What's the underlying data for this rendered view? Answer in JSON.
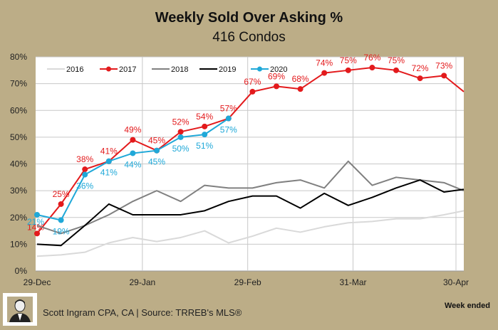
{
  "chart_data": {
    "type": "line",
    "title": "Weekly Sold Over Asking %",
    "subtitle": "416 Condos",
    "xlabel": "Week ended",
    "ylabel": "",
    "ylim": [
      0,
      80
    ],
    "y_ticks": [
      "0%",
      "10%",
      "20%",
      "30%",
      "40%",
      "50%",
      "60%",
      "70%",
      "80%"
    ],
    "x_tick_labels": [
      "29-Dec",
      "29-Jan",
      "29-Feb",
      "31-Mar",
      "30-Apr"
    ],
    "x_tick_weeks": [
      0,
      4.4,
      8.8,
      13.2,
      17.5
    ],
    "grid": true,
    "legend_position": "top-left",
    "weeks": 19,
    "series": [
      {
        "name": "2016",
        "color": "#d9d9d9",
        "markers": false,
        "labels": false,
        "values": [
          5.5,
          6,
          7,
          10.5,
          12.5,
          11,
          12.5,
          15,
          10.5,
          13,
          16,
          14.5,
          16.5,
          18,
          18.5,
          19.5,
          19.5,
          21,
          22.5
        ]
      },
      {
        "name": "2017",
        "color": "#e31a1c",
        "markers": true,
        "labels": true,
        "label_pos": "above",
        "values": [
          14,
          25,
          38,
          41,
          49,
          45,
          52,
          54,
          57,
          67,
          69,
          68,
          74,
          75,
          76,
          75,
          72,
          73,
          67
        ]
      },
      {
        "name": "2018",
        "color": "#808080",
        "markers": false,
        "labels": false,
        "values": [
          17,
          14,
          17,
          21,
          26,
          30,
          26,
          32,
          31,
          31,
          33,
          34,
          31,
          41,
          32,
          35,
          34,
          33,
          30
        ]
      },
      {
        "name": "2019",
        "color": "#000000",
        "markers": false,
        "labels": false,
        "values": [
          10,
          9.5,
          17,
          25,
          21,
          21,
          21,
          22.5,
          26,
          28,
          28,
          23.5,
          29,
          24.5,
          27.5,
          31,
          34,
          29.5,
          30.5
        ]
      },
      {
        "name": "2020",
        "color": "#1fa8d8",
        "markers": true,
        "labels": true,
        "label_pos": "below",
        "values": [
          21,
          19,
          36,
          41,
          44,
          45,
          50,
          51,
          57
        ]
      }
    ]
  },
  "footer": {
    "credit": "Scott Ingram CPA, CA | Source: TRREB's MLS®",
    "week_ended": "Week ended",
    "avatar_icon": "author-portrait-icon"
  }
}
